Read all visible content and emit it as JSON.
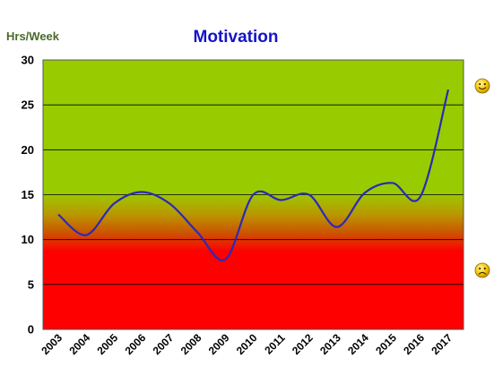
{
  "chart_data": {
    "type": "line",
    "title": "Motivation",
    "xlabel": "",
    "ylabel": "Hrs/Week",
    "x": [
      "2003",
      "2004",
      "2005",
      "2006",
      "2007",
      "2008",
      "2009",
      "2010",
      "2011",
      "2012",
      "2013",
      "2014",
      "2015",
      "2016",
      "2017"
    ],
    "series": [
      {
        "color": "#2a2ab8",
        "values": [
          12.8,
          10.5,
          14.0,
          15.3,
          14.0,
          10.8,
          7.8,
          15.0,
          14.4,
          15.0,
          11.4,
          15.2,
          16.3,
          14.8,
          26.7
        ]
      }
    ],
    "ylim": [
      0,
      30
    ],
    "yticks": [
      0,
      5,
      10,
      15,
      20,
      25,
      30
    ],
    "grid": true,
    "background_zones": [
      {
        "from": 15,
        "to": 30,
        "color": "#99cc00"
      },
      {
        "from": 9,
        "to": 15,
        "color": "#cc5500",
        "note_gradient": true
      },
      {
        "from": 0,
        "to": 9,
        "color": "#ff0000"
      }
    ],
    "annotations": [
      {
        "icon": "smiley-face-icon",
        "y": 27
      },
      {
        "icon": "frowning-face-icon",
        "y": 6.5
      }
    ]
  }
}
